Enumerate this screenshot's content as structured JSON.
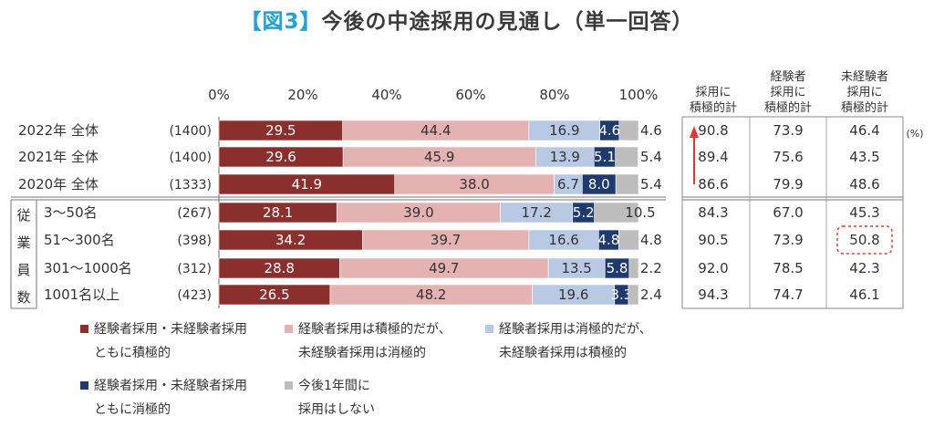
{
  "title_prefix": "【図3】",
  "title_main": "今後の中途採用の見通し（単一回答）",
  "chart_data": {
    "type": "stacked-bar-horizontal",
    "x_ticks": [
      "0%",
      "20%",
      "40%",
      "60%",
      "80%",
      "100%"
    ],
    "xlim": [
      0,
      100
    ],
    "rows": [
      {
        "label": "2022年 全体",
        "n": "(1400)",
        "values": [
          29.5,
          44.4,
          16.9,
          4.6,
          4.6
        ],
        "totals": [
          "90.8",
          "73.9",
          "46.4"
        ],
        "highlight": false
      },
      {
        "label": "2021年 全体",
        "n": "(1400)",
        "values": [
          29.6,
          45.9,
          13.9,
          5.1,
          5.4
        ],
        "totals": [
          "89.4",
          "75.6",
          "43.5"
        ],
        "highlight": false
      },
      {
        "label": "2020年 全体",
        "n": "(1333)",
        "values": [
          41.9,
          38.0,
          6.7,
          8.0,
          5.4
        ],
        "totals": [
          "86.6",
          "79.9",
          "48.6"
        ],
        "highlight": false
      },
      {
        "label": "3～50名",
        "n": "(267)",
        "values": [
          28.1,
          39.0,
          17.2,
          5.2,
          10.5
        ],
        "totals": [
          "84.3",
          "67.0",
          "45.3"
        ],
        "highlight": false
      },
      {
        "label": "51～300名",
        "n": "(398)",
        "values": [
          34.2,
          39.7,
          16.6,
          4.8,
          4.8
        ],
        "totals": [
          "90.5",
          "73.9",
          "50.8"
        ],
        "highlight": true
      },
      {
        "label": "301～1000名",
        "n": "(312)",
        "values": [
          28.8,
          49.7,
          13.5,
          5.8,
          2.2
        ],
        "totals": [
          "92.0",
          "78.5",
          "42.3"
        ],
        "highlight": false
      },
      {
        "label": "1001名以上",
        "n": "(423)",
        "values": [
          26.5,
          48.2,
          19.6,
          3.3,
          2.4
        ],
        "totals": [
          "94.3",
          "74.7",
          "46.1"
        ],
        "highlight": false
      }
    ],
    "value_labels": [
      [
        "29.5",
        "44.4",
        "16.9",
        "4.6",
        "4.6"
      ],
      [
        "29.6",
        "45.9",
        "13.9",
        "5.1",
        "5.4"
      ],
      [
        "41.9",
        "38.0",
        "6.7",
        "8.0",
        "5.4"
      ],
      [
        "28.1",
        "39.0",
        "17.2",
        "5.2",
        "10.5"
      ],
      [
        "34.2",
        "39.7",
        "16.6",
        "4.8",
        "4.8"
      ],
      [
        "28.8",
        "49.7",
        "13.5",
        "5.8",
        "2.2"
      ],
      [
        "26.5",
        "48.2",
        "19.6",
        "3.3",
        "2.4"
      ]
    ],
    "group_label": [
      "従",
      "業",
      "員",
      "数"
    ],
    "total_headers": [
      [
        "採用に",
        "積極的計"
      ],
      [
        "経験者",
        "採用に",
        "積極的計"
      ],
      [
        "未経験者",
        "採用に",
        "積極的計"
      ]
    ],
    "unit_label": "(%)",
    "series": [
      {
        "name_lines": [
          "経験者採用・未経験者採用",
          "ともに積極的"
        ],
        "color": "#8b2f2c"
      },
      {
        "name_lines": [
          "経験者採用は積極的だが、",
          "未経験者採用は消極的"
        ],
        "color": "#e4b2b1"
      },
      {
        "name_lines": [
          "経験者採用は消極的だが、",
          "未経験者採用は積極的"
        ],
        "color": "#b7c9e3"
      },
      {
        "name_lines": [
          "経験者採用・未経験者採用",
          "ともに消極的"
        ],
        "color": "#1f3a6e"
      },
      {
        "name_lines": [
          "今後1年間に",
          "採用はしない"
        ],
        "color": "#bdbdbd"
      }
    ],
    "label_colors": [
      "#ffffff",
      "#333333",
      "#333333",
      "#ffffff",
      "#333333"
    ],
    "trend_arrow_color": "#e8352e",
    "highlight_color": "#e8352e"
  }
}
